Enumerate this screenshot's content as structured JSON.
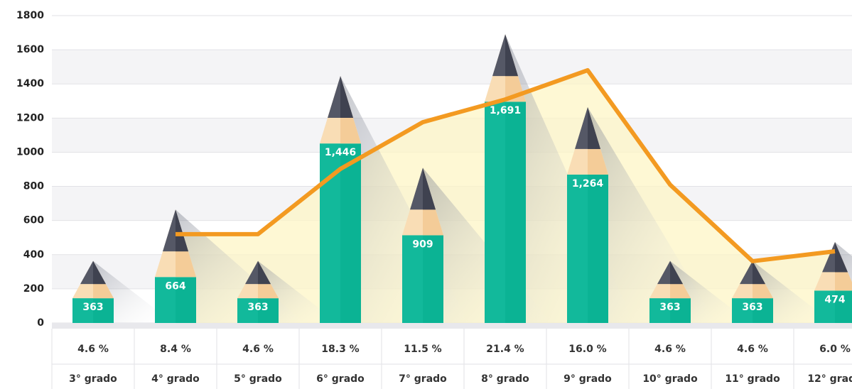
{
  "chart_data": {
    "type": "bar",
    "categories": [
      "3° grado",
      "4° grado",
      "5° grado",
      "6° grado",
      "7° grado",
      "8° grado",
      "9° grado",
      "10° grado",
      "11° grado",
      "12° grado"
    ],
    "values": [
      363,
      664,
      363,
      1446,
      909,
      1691,
      1264,
      363,
      363,
      474
    ],
    "value_labels": [
      "363",
      "664",
      "363",
      "1,446",
      "909",
      "1,691",
      "1,264",
      "363",
      "363",
      "474"
    ],
    "color": "#0bb394",
    "percentages": [
      4.6,
      8.4,
      4.6,
      18.3,
      11.5,
      21.4,
      16.0,
      4.6,
      4.6,
      6.0
    ],
    "percentage_labels": [
      "4.6 %",
      "8.4 %",
      "4.6 %",
      "18.3 %",
      "11.5 %",
      "21.4 %",
      "16.0 %",
      "4.6 %",
      "4.6 %",
      "6.0 %"
    ],
    "series": [
      {
        "type": "line",
        "color": "#f39a21",
        "values": [
          null,
          520,
          520,
          902,
          1176,
          1309,
          1480,
          810,
          362,
          420
        ]
      }
    ],
    "ylim": [
      0,
      1800
    ],
    "yticks": [
      0,
      200,
      400,
      600,
      800,
      1000,
      1200,
      1400,
      1600,
      1800
    ],
    "grid": true
  }
}
